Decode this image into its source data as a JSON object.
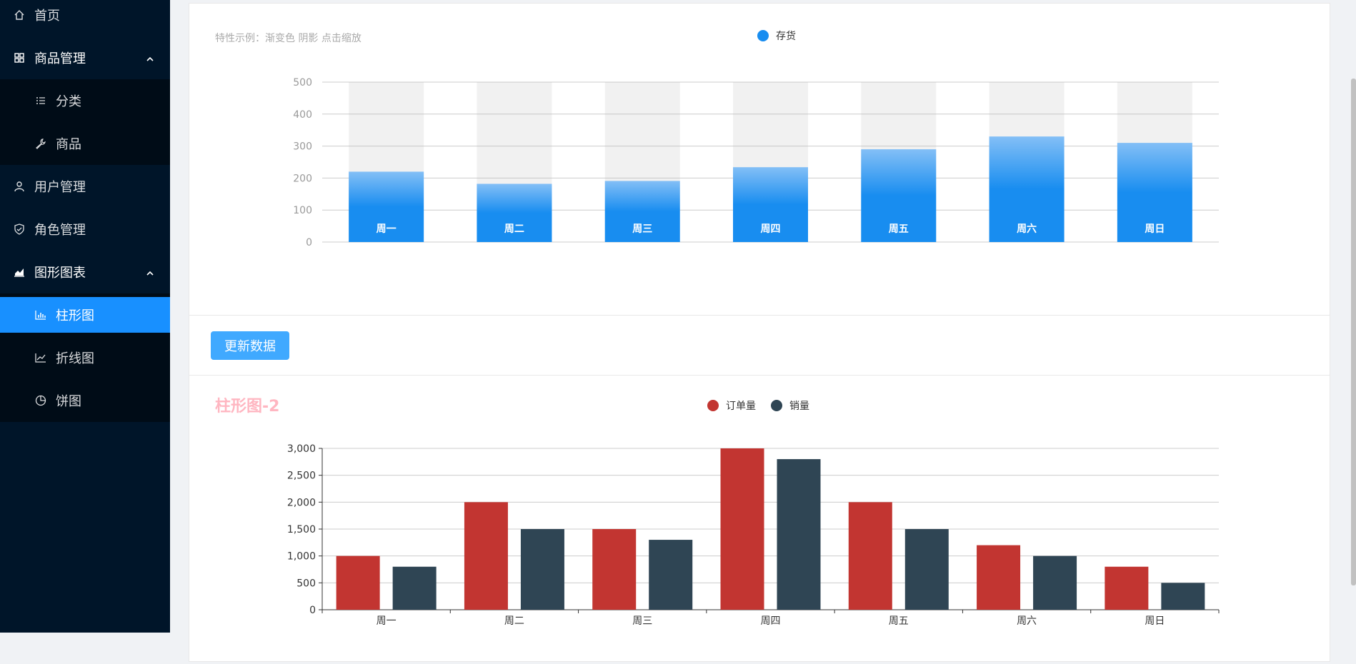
{
  "sidebar": {
    "items": [
      {
        "label": "首页",
        "icon": "home-icon"
      },
      {
        "label": "商品管理",
        "icon": "appstore-icon"
      },
      {
        "label": "分类",
        "icon": "list-icon"
      },
      {
        "label": "商品",
        "icon": "tool-icon"
      },
      {
        "label": "用户管理",
        "icon": "user-icon"
      },
      {
        "label": "角色管理",
        "icon": "safety-icon"
      },
      {
        "label": "图形图表",
        "icon": "area-chart-icon"
      },
      {
        "label": "柱形图",
        "icon": "bar-chart-icon"
      },
      {
        "label": "折线图",
        "icon": "line-chart-icon"
      },
      {
        "label": "饼图",
        "icon": "pie-chart-icon"
      }
    ]
  },
  "update_button": {
    "label": "更新数据"
  },
  "colors": {
    "sidebar_bg": "#001529",
    "active": "#1890ff",
    "inventory": "#188df0",
    "inventory_top": "#83bff6",
    "orders": "#c23531",
    "sales": "#2f4554",
    "chart2_title": "#ffb6c1"
  },
  "chart_data": [
    {
      "type": "bar",
      "subtitle": "特性示例：渐变色 阴影 点击缩放",
      "legend": [
        "存货"
      ],
      "legend_position": "top-center",
      "categories": [
        "周一",
        "周二",
        "周三",
        "周四",
        "周五",
        "周六",
        "周日"
      ],
      "series": [
        {
          "name": "存货",
          "values": [
            220,
            182,
            191,
            234,
            290,
            330,
            310
          ]
        }
      ],
      "background_max": 500,
      "yticks": [
        "0",
        "100",
        "200",
        "300",
        "400",
        "500"
      ],
      "ylim": [
        0,
        500
      ],
      "grid": true
    },
    {
      "type": "bar",
      "title": "柱形图-2",
      "legend": [
        "订单量",
        "销量"
      ],
      "legend_position": "top-center",
      "categories": [
        "周一",
        "周二",
        "周三",
        "周四",
        "周五",
        "周六",
        "周日"
      ],
      "series": [
        {
          "name": "订单量",
          "values": [
            1000,
            2000,
            1500,
            3000,
            2000,
            1200,
            800
          ]
        },
        {
          "name": "销量",
          "values": [
            800,
            1500,
            1300,
            2800,
            1500,
            1000,
            500
          ]
        }
      ],
      "yticks": [
        "0",
        "500",
        "1,000",
        "1,500",
        "2,000",
        "2,500",
        "3,000"
      ],
      "ylim": [
        0,
        3000
      ],
      "grid": true
    }
  ]
}
